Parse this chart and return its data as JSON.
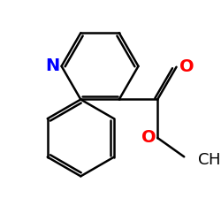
{
  "bg_color": "#ffffff",
  "atom_colors": {
    "N": "#0000ff",
    "O": "#ff0000",
    "C": "#000000"
  },
  "line_color": "#000000",
  "line_width": 1.8,
  "dbo": 0.055,
  "shrink": 0.025,
  "figsize": [
    2.5,
    2.5
  ],
  "dpi": 100,
  "xlim": [
    -1.0,
    2.2
  ],
  "ylim": [
    -2.2,
    1.5
  ],
  "font_size": 14
}
